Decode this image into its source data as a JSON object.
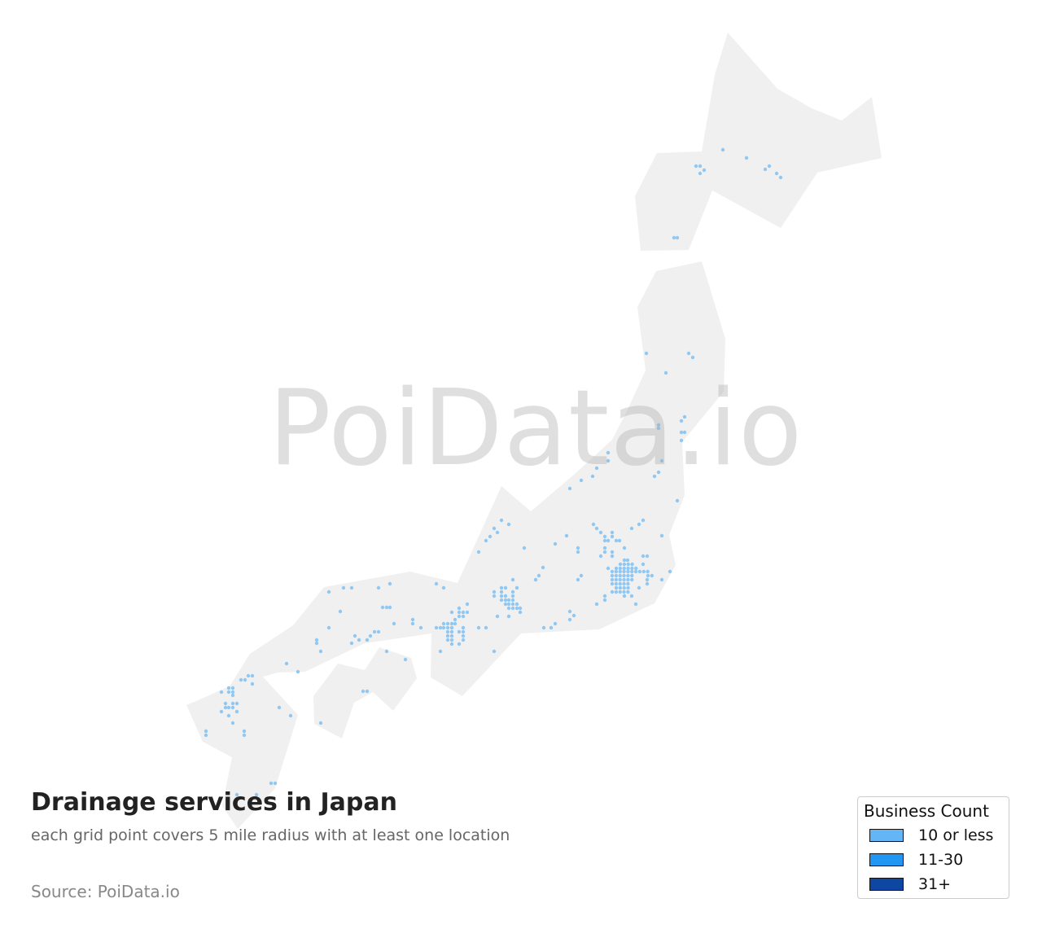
{
  "title": "Drainage services in Japan",
  "subtitle": "each grid point covers 5 mile radius with at least one location",
  "source": "Source: PoiData.io",
  "watermark": "PoiData.io",
  "map": {
    "region": "Japan",
    "land_color": "#f0f0f0",
    "point_color": "#90c8f4",
    "grid_radius_miles": 5
  },
  "legend": {
    "title": "Business Count",
    "items": [
      {
        "label": "10 or less",
        "color": "#64b5f6"
      },
      {
        "label": "11-30",
        "color": "#2196f3"
      },
      {
        "label": "31+",
        "color": "#0d47a1"
      }
    ]
  }
}
